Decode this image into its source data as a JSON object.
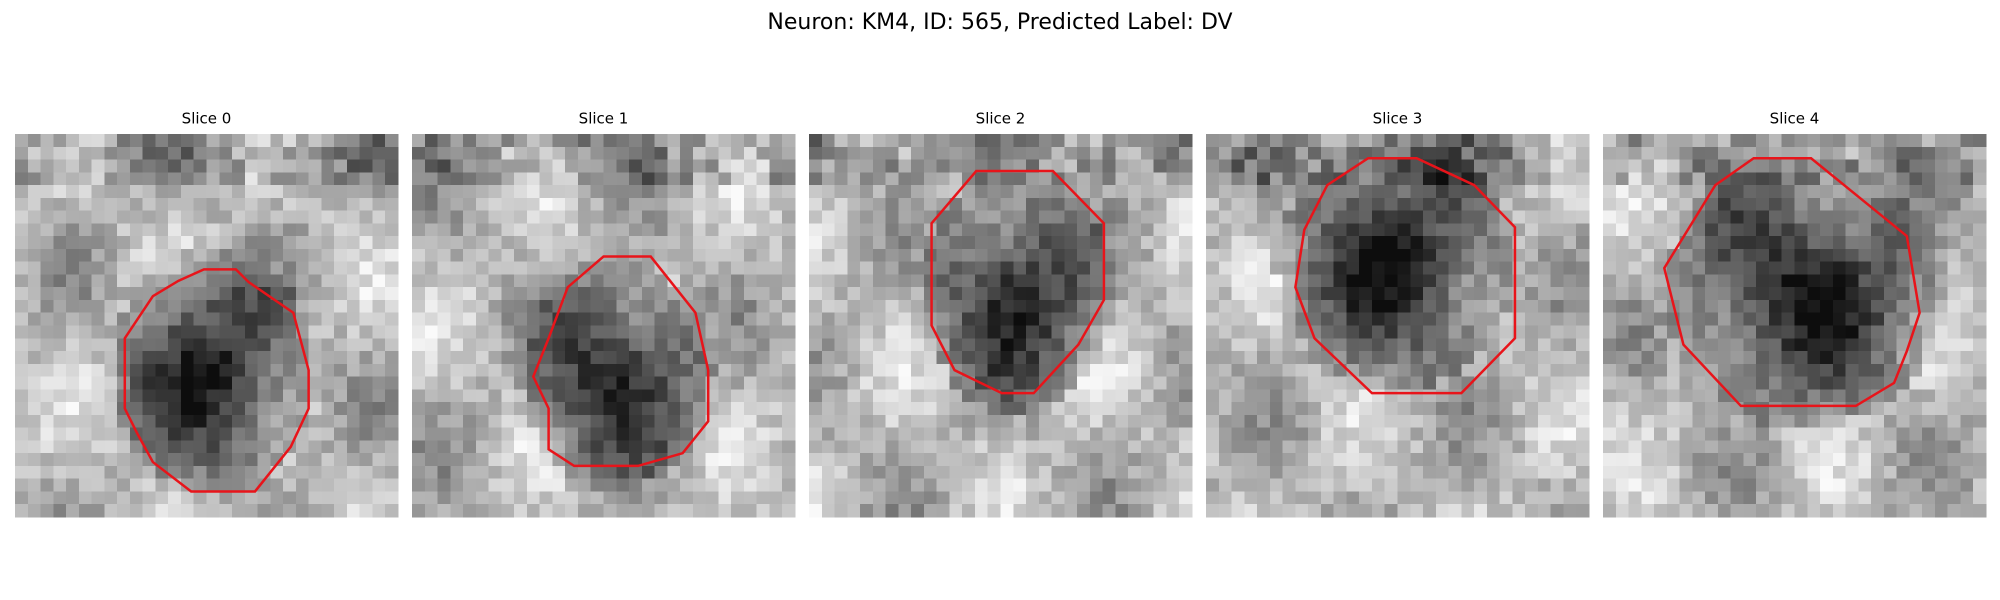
{
  "title": "Neuron: KM4, ID: 565, Predicted Label: DV",
  "panels": [
    {
      "title": "Slice 0"
    },
    {
      "title": "Slice 1"
    },
    {
      "title": "Slice 2"
    },
    {
      "title": "Slice 3"
    },
    {
      "title": "Slice 4"
    }
  ]
}
